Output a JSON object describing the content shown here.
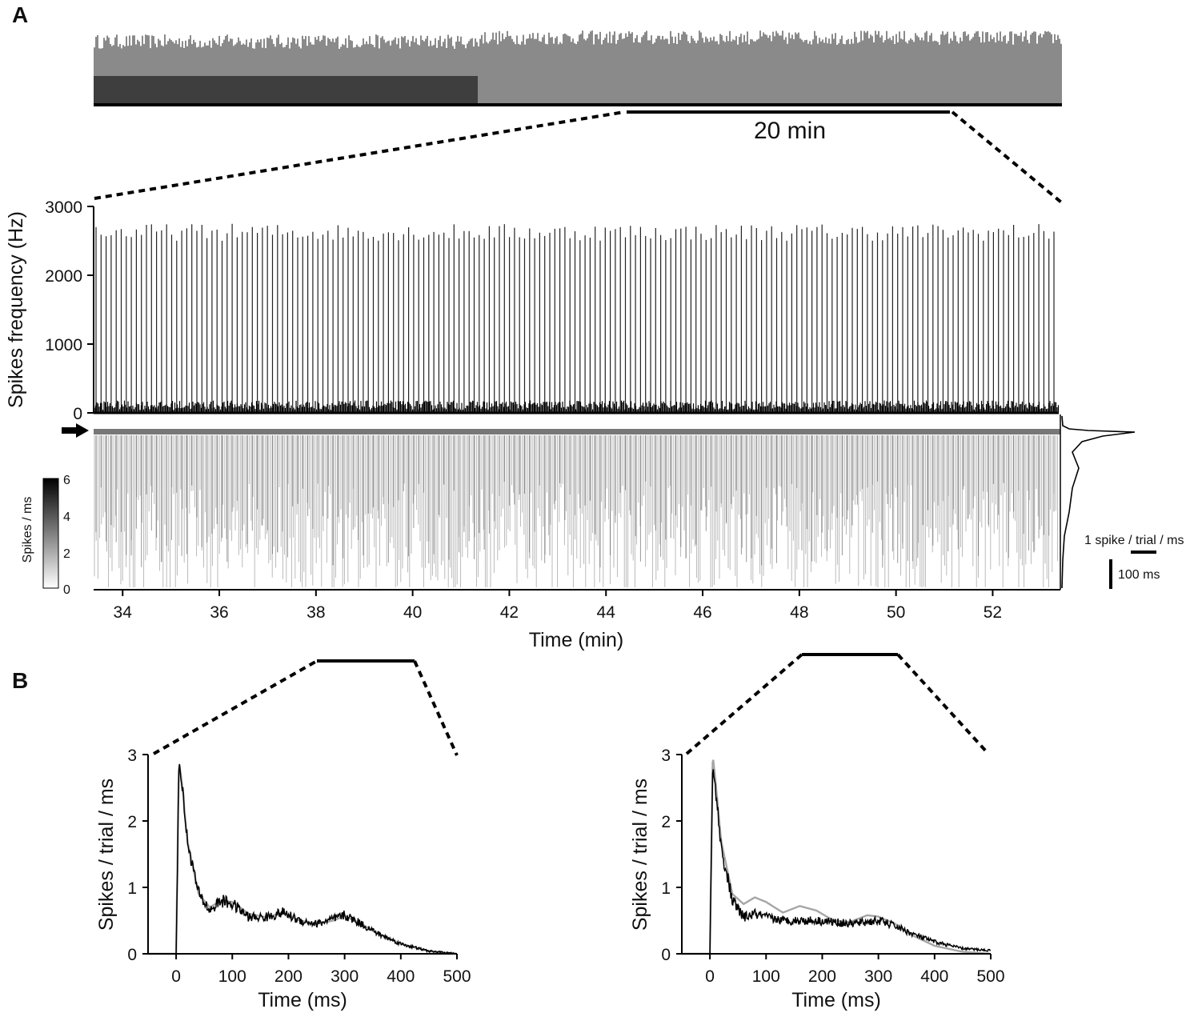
{
  "panels": {
    "a": "A",
    "b": "B"
  },
  "overview": {
    "scalebar_label": "20 min"
  },
  "chart_data": [
    {
      "type": "line",
      "ylabel": "Spikes frequency (Hz)",
      "xlabel": "Time (min)",
      "xlim": [
        33.4,
        53.4
      ],
      "ylim": [
        0,
        3000
      ],
      "x_ticks": [
        34,
        36,
        38,
        40,
        42,
        44,
        46,
        48,
        50,
        52
      ],
      "y_ticks": [
        0,
        1000,
        2000,
        3000
      ],
      "peak_range_hz": [
        2500,
        2750
      ],
      "baseline_hz": 150,
      "colorbar": {
        "label": "Spikes / ms",
        "range": [
          0,
          6
        ],
        "ticks": [
          0,
          2,
          4,
          6
        ]
      },
      "scalebars": {
        "horizontal": "1 spike / trial / ms",
        "vertical": "100 ms"
      }
    },
    {
      "type": "line",
      "xlabel": "Time (ms)",
      "ylabel": "Spikes / trial / ms",
      "xlim": [
        -50,
        500
      ],
      "ylim": [
        0,
        3
      ],
      "x_ticks": [
        0,
        100,
        200,
        300,
        400,
        500
      ],
      "y_ticks": [
        0,
        1,
        2,
        3
      ],
      "series_black": {
        "x": [
          0,
          5,
          10,
          20,
          40,
          60,
          80,
          100,
          130,
          160,
          190,
          220,
          250,
          280,
          300,
          330,
          360,
          400,
          450,
          500
        ],
        "values": [
          0,
          2.9,
          2.6,
          1.7,
          0.9,
          0.65,
          0.8,
          0.75,
          0.55,
          0.55,
          0.62,
          0.5,
          0.45,
          0.52,
          0.58,
          0.45,
          0.3,
          0.15,
          0.04,
          0
        ]
      },
      "series_gray": {
        "x": [
          0,
          5,
          10,
          20,
          40,
          60,
          80,
          100,
          130,
          160,
          190,
          220,
          250,
          280,
          300,
          330,
          360,
          400,
          450,
          500
        ],
        "values": [
          0,
          2.9,
          2.6,
          1.7,
          0.9,
          0.7,
          0.8,
          0.78,
          0.6,
          0.55,
          0.62,
          0.5,
          0.45,
          0.5,
          0.57,
          0.45,
          0.3,
          0.15,
          0.04,
          0
        ]
      }
    },
    {
      "type": "line",
      "xlabel": "Time (ms)",
      "ylabel": "Spikes / trial / ms",
      "xlim": [
        -50,
        500
      ],
      "ylim": [
        0,
        3
      ],
      "x_ticks": [
        0,
        100,
        200,
        300,
        400,
        500
      ],
      "y_ticks": [
        0,
        1,
        2,
        3
      ],
      "series_black": {
        "x": [
          0,
          5,
          10,
          20,
          40,
          60,
          80,
          100,
          130,
          160,
          190,
          220,
          250,
          280,
          300,
          330,
          360,
          400,
          450,
          500
        ],
        "values": [
          0,
          2.8,
          2.5,
          1.6,
          0.8,
          0.55,
          0.6,
          0.55,
          0.5,
          0.5,
          0.5,
          0.48,
          0.45,
          0.48,
          0.5,
          0.42,
          0.3,
          0.18,
          0.08,
          0.05
        ]
      },
      "series_gray": {
        "x": [
          0,
          5,
          10,
          20,
          40,
          60,
          80,
          100,
          130,
          160,
          190,
          220,
          250,
          280,
          300,
          330,
          360,
          400,
          450,
          500
        ],
        "values": [
          0,
          3.0,
          2.6,
          1.7,
          0.9,
          0.75,
          0.85,
          0.78,
          0.62,
          0.72,
          0.65,
          0.5,
          0.48,
          0.58,
          0.56,
          0.45,
          0.28,
          0.12,
          0.03,
          0
        ]
      }
    }
  ]
}
